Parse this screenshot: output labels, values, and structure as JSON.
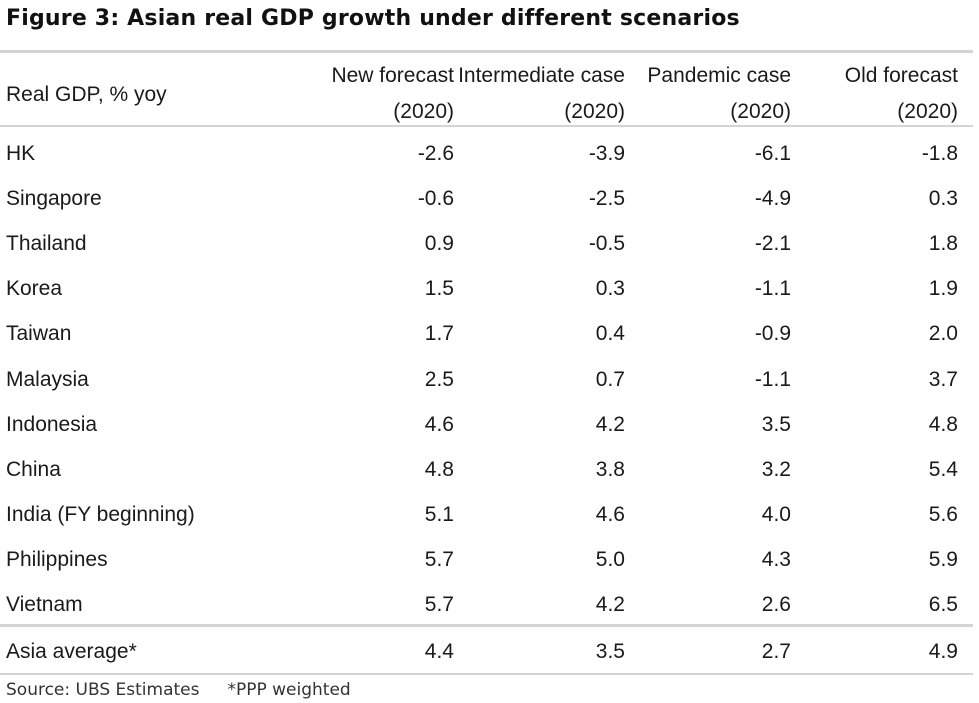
{
  "title": "Figure 3: Asian real GDP growth under different scenarios",
  "table": {
    "row_header": "Real GDP, % yoy",
    "columns": [
      {
        "line1": "New forecast",
        "line2": "(2020)"
      },
      {
        "line1": "Intermediate case",
        "line2": "(2020)"
      },
      {
        "line1": "Pandemic case",
        "line2": "(2020)"
      },
      {
        "line1": "Old forecast",
        "line2": "(2020)"
      }
    ],
    "rows": [
      {
        "label": "HK",
        "values": [
          "-2.6",
          "-3.9",
          "-6.1",
          "-1.8"
        ]
      },
      {
        "label": "Singapore",
        "values": [
          "-0.6",
          "-2.5",
          "-4.9",
          "0.3"
        ]
      },
      {
        "label": "Thailand",
        "values": [
          "0.9",
          "-0.5",
          "-2.1",
          "1.8"
        ]
      },
      {
        "label": "Korea",
        "values": [
          "1.5",
          "0.3",
          "-1.1",
          "1.9"
        ]
      },
      {
        "label": "Taiwan",
        "values": [
          "1.7",
          "0.4",
          "-0.9",
          "2.0"
        ]
      },
      {
        "label": "Malaysia",
        "values": [
          "2.5",
          "0.7",
          "-1.1",
          "3.7"
        ]
      },
      {
        "label": "Indonesia",
        "values": [
          "4.6",
          "4.2",
          "3.5",
          "4.8"
        ]
      },
      {
        "label": "China",
        "values": [
          "4.8",
          "3.8",
          "3.2",
          "5.4"
        ]
      },
      {
        "label": "India (FY beginning)",
        "values": [
          "5.1",
          "4.6",
          "4.0",
          "5.6"
        ]
      },
      {
        "label": "Philippines",
        "values": [
          "5.7",
          "5.0",
          "4.3",
          "5.9"
        ]
      },
      {
        "label": "Vietnam",
        "values": [
          "5.7",
          "4.2",
          "2.6",
          "6.5"
        ]
      }
    ],
    "summary": {
      "label": "Asia average*",
      "values": [
        "4.4",
        "3.5",
        "2.7",
        "4.9"
      ]
    }
  },
  "chart_data": {
    "type": "table",
    "title": "Figure 3: Asian real GDP growth under different scenarios",
    "row_header": "Real GDP, % yoy",
    "columns": [
      "New forecast (2020)",
      "Intermediate case (2020)",
      "Pandemic case (2020)",
      "Old forecast (2020)"
    ],
    "rows": [
      "HK",
      "Singapore",
      "Thailand",
      "Korea",
      "Taiwan",
      "Malaysia",
      "Indonesia",
      "China",
      "India (FY beginning)",
      "Philippines",
      "Vietnam",
      "Asia average*"
    ],
    "series": [
      {
        "name": "New forecast (2020)",
        "values": [
          -2.6,
          -0.6,
          0.9,
          1.5,
          1.7,
          2.5,
          4.6,
          4.8,
          5.1,
          5.7,
          5.7,
          4.4
        ]
      },
      {
        "name": "Intermediate case (2020)",
        "values": [
          -3.9,
          -2.5,
          -0.5,
          0.3,
          0.4,
          0.7,
          4.2,
          3.8,
          4.6,
          5.0,
          4.2,
          3.5
        ]
      },
      {
        "name": "Pandemic case (2020)",
        "values": [
          -6.1,
          -4.9,
          -2.1,
          -1.1,
          -0.9,
          -1.1,
          3.5,
          3.2,
          4.0,
          4.3,
          2.6,
          2.7
        ]
      },
      {
        "name": "Old forecast (2020)",
        "values": [
          -1.8,
          0.3,
          1.8,
          1.9,
          2.0,
          3.7,
          4.8,
          5.4,
          5.6,
          5.9,
          6.5,
          4.9
        ]
      }
    ]
  },
  "footer": {
    "source": "Source: UBS Estimates",
    "note": "*PPP weighted"
  }
}
